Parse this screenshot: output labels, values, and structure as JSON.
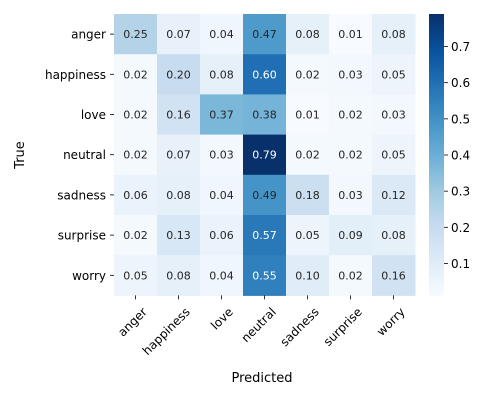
{
  "chart_data": {
    "type": "heatmap",
    "title": "",
    "xlabel": "Predicted",
    "ylabel": "True",
    "x_categories": [
      "anger",
      "happiness",
      "love",
      "neutral",
      "sadness",
      "surprise",
      "worry"
    ],
    "y_categories": [
      "anger",
      "happiness",
      "love",
      "neutral",
      "sadness",
      "surprise",
      "worry"
    ],
    "values": [
      [
        0.25,
        0.07,
        0.04,
        0.47,
        0.08,
        0.01,
        0.08
      ],
      [
        0.02,
        0.2,
        0.08,
        0.6,
        0.02,
        0.03,
        0.05
      ],
      [
        0.02,
        0.16,
        0.37,
        0.38,
        0.01,
        0.02,
        0.03
      ],
      [
        0.02,
        0.07,
        0.03,
        0.79,
        0.02,
        0.02,
        0.05
      ],
      [
        0.06,
        0.08,
        0.04,
        0.49,
        0.18,
        0.03,
        0.12
      ],
      [
        0.02,
        0.13,
        0.06,
        0.57,
        0.05,
        0.09,
        0.08
      ],
      [
        0.05,
        0.08,
        0.04,
        0.55,
        0.1,
        0.02,
        0.16
      ]
    ],
    "colormap": "Blues",
    "vmin": 0.01,
    "vmax": 0.79,
    "colorbar_ticks": [
      0.1,
      0.2,
      0.3,
      0.4,
      0.5,
      0.6,
      0.7
    ],
    "x_tick_rotation_deg": 45
  }
}
